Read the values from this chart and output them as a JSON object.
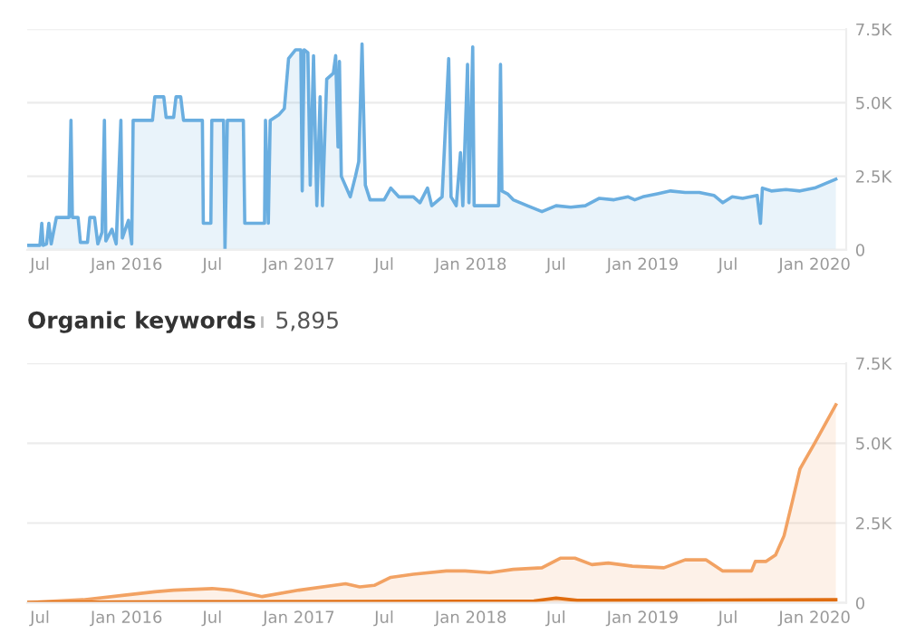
{
  "chart_data": [
    {
      "type": "area",
      "grid": "y",
      "xlim": [
        "2015-06-04",
        "2020-03-08"
      ],
      "xticks": [
        {
          "value": "2015-07-01",
          "label": "Jul"
        },
        {
          "value": "2016-01-01",
          "label": "Jan 2016"
        },
        {
          "value": "2016-07-01",
          "label": "Jul"
        },
        {
          "value": "2017-01-01",
          "label": "Jan 2017"
        },
        {
          "value": "2017-07-01",
          "label": "Jul"
        },
        {
          "value": "2018-01-01",
          "label": "Jan 2018"
        },
        {
          "value": "2018-07-01",
          "label": "Jul"
        },
        {
          "value": "2019-01-01",
          "label": "Jan 2019"
        },
        {
          "value": "2019-07-01",
          "label": "Jul"
        },
        {
          "value": "2020-01-01",
          "label": "Jan 2020"
        }
      ],
      "ylim": [
        0,
        7500
      ],
      "yticks": [
        0,
        {
          "value": 2500,
          "label": "2.5K"
        },
        {
          "value": 5000,
          "label": "5.0K"
        },
        {
          "value": 7500,
          "label": "7.5K"
        }
      ],
      "series": [
        {
          "color": "#6aaee0",
          "x": [
            "2015-06-05",
            "2015-07-01",
            "2015-07-05",
            "2015-07-08",
            "2015-07-15",
            "2015-07-20",
            "2015-07-25",
            "2015-08-05",
            "2015-09-01",
            "2015-09-05",
            "2015-09-08",
            "2015-09-20",
            "2015-09-25",
            "2015-10-10",
            "2015-10-15",
            "2015-10-25",
            "2015-11-01",
            "2015-11-10",
            "2015-11-15",
            "2015-11-18",
            "2015-12-01",
            "2015-12-10",
            "2015-12-20",
            "2015-12-23",
            "2016-01-05",
            "2016-01-12",
            "2016-01-15",
            "2016-02-25",
            "2016-03-01",
            "2016-03-20",
            "2016-03-25",
            "2016-04-10",
            "2016-04-15",
            "2016-04-25",
            "2016-05-01",
            "2016-06-10",
            "2016-06-12",
            "2016-06-28",
            "2016-06-30",
            "2016-07-25",
            "2016-07-28",
            "2016-08-02",
            "2016-09-05",
            "2016-09-08",
            "2016-10-20",
            "2016-10-22",
            "2016-10-28",
            "2016-11-01",
            "2016-11-20",
            "2016-12-01",
            "2016-12-10",
            "2016-12-25",
            "2017-01-05",
            "2017-01-08",
            "2017-01-12",
            "2017-01-20",
            "2017-01-25",
            "2017-02-01",
            "2017-02-08",
            "2017-02-15",
            "2017-02-20",
            "2017-03-01",
            "2017-03-15",
            "2017-03-20",
            "2017-03-25",
            "2017-03-28",
            "2017-04-01",
            "2017-04-20",
            "2017-05-01",
            "2017-05-08",
            "2017-05-15",
            "2017-05-22",
            "2017-06-01",
            "2017-07-01",
            "2017-07-15",
            "2017-08-01",
            "2017-09-01",
            "2017-09-15",
            "2017-10-01",
            "2017-10-10",
            "2017-11-01",
            "2017-11-15",
            "2017-11-20",
            "2017-12-01",
            "2017-12-10",
            "2017-12-15",
            "2017-12-25",
            "2017-12-28",
            "2018-01-05",
            "2018-01-08",
            "2018-02-01",
            "2018-03-01",
            "2018-03-05",
            "2018-03-08",
            "2018-03-20",
            "2018-04-01",
            "2018-05-01",
            "2018-06-01",
            "2018-07-01",
            "2018-08-01",
            "2018-09-01",
            "2018-10-01",
            "2018-11-01",
            "2018-12-01",
            "2018-12-15",
            "2019-01-01",
            "2019-02-01",
            "2019-03-01",
            "2019-04-01",
            "2019-05-01",
            "2019-06-01",
            "2019-06-20",
            "2019-07-10",
            "2019-08-01",
            "2019-09-01",
            "2019-09-08",
            "2019-09-12",
            "2019-10-01",
            "2019-11-01",
            "2019-12-01",
            "2020-01-01",
            "2020-02-15"
          ],
          "values": [
            150,
            150,
            900,
            150,
            200,
            900,
            200,
            1100,
            1100,
            4400,
            1100,
            1100,
            250,
            250,
            1100,
            1100,
            200,
            600,
            4400,
            300,
            700,
            200,
            4400,
            400,
            1000,
            200,
            4400,
            4400,
            5200,
            5200,
            4500,
            4500,
            5200,
            5200,
            4400,
            4400,
            900,
            900,
            4400,
            4400,
            0,
            4400,
            4400,
            900,
            900,
            4400,
            900,
            4400,
            4600,
            4800,
            6500,
            6800,
            6800,
            2000,
            6800,
            6700,
            2200,
            6600,
            1500,
            5200,
            1500,
            5800,
            6000,
            6600,
            3500,
            6400,
            2500,
            1800,
            2500,
            3000,
            7000,
            2200,
            1700,
            1700,
            2100,
            1800,
            1800,
            1600,
            2100,
            1500,
            1800,
            6500,
            1800,
            1500,
            3300,
            1500,
            6300,
            1600,
            6900,
            1500,
            1500,
            1500,
            6300,
            2000,
            1900,
            1700,
            1500,
            1300,
            1500,
            1450,
            1500,
            1750,
            1700,
            1800,
            1700,
            1800,
            1900,
            2000,
            1950,
            1950,
            1850,
            1600,
            1800,
            1750,
            1850,
            900,
            2100,
            2000,
            2050,
            2000,
            2100,
            2400
          ]
        }
      ]
    },
    {
      "type": "area",
      "grid": "y",
      "title": "Organic keywords",
      "subtitle": "5,895",
      "xlim": [
        "2015-06-04",
        "2020-03-08"
      ],
      "xticks": [
        {
          "value": "2015-07-01",
          "label": "Jul"
        },
        {
          "value": "2016-01-01",
          "label": "Jan 2016"
        },
        {
          "value": "2016-07-01",
          "label": "Jul"
        },
        {
          "value": "2017-01-01",
          "label": "Jan 2017"
        },
        {
          "value": "2017-07-01",
          "label": "Jul"
        },
        {
          "value": "2018-01-01",
          "label": "Jan 2018"
        },
        {
          "value": "2018-07-01",
          "label": "Jul"
        },
        {
          "value": "2019-01-01",
          "label": "Jan 2019"
        },
        {
          "value": "2019-07-01",
          "label": "Jul"
        },
        {
          "value": "2020-01-01",
          "label": "Jan 2020"
        }
      ],
      "ylim": [
        0,
        7500
      ],
      "yticks": [
        0,
        {
          "value": 2500,
          "label": "2.5K"
        },
        {
          "value": 5000,
          "label": "5.0K"
        },
        {
          "value": 7500,
          "label": "7.5K"
        }
      ],
      "series": [
        {
          "color": "#f2a263",
          "x": [
            "2015-06-05",
            "2015-07-01",
            "2015-10-01",
            "2016-01-01",
            "2016-03-01",
            "2016-04-10",
            "2016-07-01",
            "2016-08-10",
            "2016-10-15",
            "2017-01-01",
            "2017-04-10",
            "2017-05-10",
            "2017-06-10",
            "2017-07-15",
            "2017-09-01",
            "2017-11-10",
            "2017-12-20",
            "2018-02-10",
            "2018-04-01",
            "2018-06-01",
            "2018-07-10",
            "2018-08-10",
            "2018-09-15",
            "2018-10-20",
            "2018-12-10",
            "2019-02-15",
            "2019-04-01",
            "2019-05-15",
            "2019-06-20",
            "2019-07-20",
            "2019-08-20",
            "2019-08-28",
            "2019-09-20",
            "2019-10-10",
            "2019-10-28",
            "2019-11-15",
            "2019-12-01",
            "2020-01-01",
            "2020-02-15"
          ],
          "values": [
            0,
            30,
            100,
            250,
            350,
            400,
            450,
            400,
            200,
            400,
            600,
            500,
            550,
            800,
            900,
            1000,
            1000,
            950,
            1050,
            1100,
            1400,
            1400,
            1200,
            1250,
            1150,
            1100,
            1350,
            1350,
            1000,
            1000,
            1000,
            1300,
            1300,
            1500,
            2100,
            3200,
            4200,
            5000,
            6200
          ]
        },
        {
          "color": "#e06d10",
          "x": [
            "2015-06-05",
            "2016-06-01",
            "2017-06-01",
            "2018-05-15",
            "2018-07-01",
            "2018-08-15",
            "2019-06-01",
            "2020-02-15"
          ],
          "values": [
            20,
            40,
            50,
            60,
            150,
            80,
            90,
            100
          ]
        }
      ]
    }
  ]
}
